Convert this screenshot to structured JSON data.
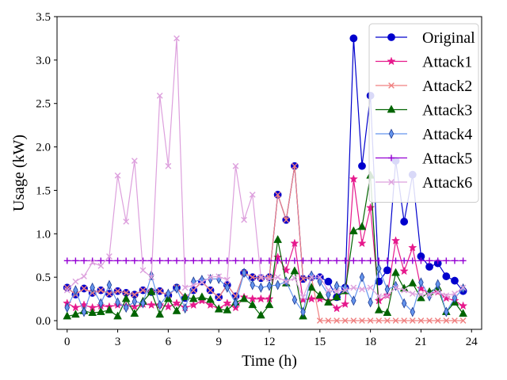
{
  "chart_data": {
    "type": "line",
    "title": "",
    "xlabel": "Time (h)",
    "ylabel": "Usage (kW)",
    "xlim": [
      -0.6,
      24.6
    ],
    "ylim": [
      -0.1,
      3.5
    ],
    "xticks": [
      0,
      3,
      6,
      9,
      12,
      15,
      18,
      21,
      24
    ],
    "xtick_labels": [
      "0",
      "3",
      "6",
      "9",
      "12",
      "15",
      "18",
      "21",
      "24"
    ],
    "yticks": [
      0.0,
      0.5,
      1.0,
      1.5,
      2.0,
      2.5,
      3.0,
      3.5
    ],
    "ytick_labels": [
      "0.0",
      "0.5",
      "1.0",
      "1.5",
      "2.0",
      "2.5",
      "3.0",
      "3.5"
    ],
    "grid": false,
    "legend_position": "top-right",
    "x": [
      0,
      0.5,
      1,
      1.5,
      2,
      2.5,
      3,
      3.5,
      4,
      4.5,
      5,
      5.5,
      6,
      6.5,
      7,
      7.5,
      8,
      8.5,
      9,
      9.5,
      10,
      10.5,
      11,
      11.5,
      12,
      12.5,
      13,
      13.5,
      14,
      14.5,
      15,
      15.5,
      16,
      16.5,
      17,
      17.5,
      18,
      18.5,
      19,
      19.5,
      20,
      20.5,
      21,
      21.5,
      22,
      22.5,
      23,
      23.5
    ],
    "series": [
      {
        "name": "Original",
        "color": "#0000cd",
        "marker": "circle",
        "values": [
          0.38,
          0.3,
          0.37,
          0.32,
          0.35,
          0.31,
          0.34,
          0.32,
          0.3,
          0.35,
          0.33,
          0.34,
          0.29,
          0.38,
          0.26,
          0.35,
          0.45,
          0.35,
          0.27,
          0.41,
          0.28,
          0.55,
          0.5,
          0.49,
          0.5,
          1.45,
          1.16,
          1.78,
          0.48,
          0.5,
          0.5,
          0.45,
          0.27,
          0.38,
          3.25,
          1.78,
          2.59,
          0.45,
          0.58,
          1.84,
          1.14,
          1.68,
          0.74,
          0.62,
          0.66,
          0.51,
          0.46,
          0.34
        ]
      },
      {
        "name": "Attack1",
        "color": "#e6198c",
        "marker": "star",
        "values": [
          0.2,
          0.15,
          0.18,
          0.15,
          0.17,
          0.16,
          0.18,
          0.17,
          0.16,
          0.19,
          0.18,
          0.18,
          0.16,
          0.2,
          0.15,
          0.18,
          0.23,
          0.18,
          0.14,
          0.2,
          0.15,
          0.27,
          0.25,
          0.25,
          0.25,
          0.73,
          0.58,
          0.89,
          0.24,
          0.25,
          0.25,
          0.23,
          0.14,
          0.19,
          1.63,
          0.89,
          1.3,
          0.23,
          0.29,
          0.92,
          0.57,
          0.84,
          0.37,
          0.31,
          0.33,
          0.26,
          0.23,
          0.17
        ]
      },
      {
        "name": "Attack2",
        "color": "#f08080",
        "marker": "x",
        "values": [
          0.38,
          0.3,
          0.37,
          0.32,
          0.35,
          0.31,
          0.34,
          0.32,
          0.3,
          0.35,
          0.33,
          0.34,
          0.29,
          0.38,
          0.26,
          0.35,
          0.45,
          0.35,
          0.27,
          0.41,
          0.28,
          0.55,
          0.5,
          0.49,
          0.5,
          1.45,
          1.16,
          1.78,
          0.48,
          0.5,
          0.0,
          0.0,
          0.0,
          0.0,
          0.0,
          0.0,
          0.0,
          0.0,
          0.0,
          0.0,
          0.0,
          0.0,
          0.0,
          0.0,
          0.0,
          0.0,
          0.0,
          0.0
        ]
      },
      {
        "name": "Attack3",
        "color": "#006400",
        "marker": "triangle",
        "values": [
          0.05,
          0.07,
          0.11,
          0.09,
          0.1,
          0.12,
          0.05,
          0.25,
          0.08,
          0.22,
          0.33,
          0.07,
          0.25,
          0.11,
          0.27,
          0.25,
          0.27,
          0.24,
          0.13,
          0.12,
          0.21,
          0.25,
          0.18,
          0.06,
          0.18,
          0.93,
          0.43,
          0.57,
          0.05,
          0.38,
          0.29,
          0.21,
          0.27,
          0.34,
          1.03,
          1.08,
          1.67,
          0.12,
          0.09,
          0.55,
          0.37,
          0.43,
          0.26,
          0.33,
          0.38,
          0.1,
          0.21,
          0.08
        ]
      },
      {
        "name": "Attack4",
        "color": "#6495ed",
        "marker": "thin-diamond",
        "values": [
          0.15,
          0.35,
          0.1,
          0.38,
          0.2,
          0.41,
          0.21,
          0.15,
          0.22,
          0.2,
          0.52,
          0.18,
          0.31,
          0.37,
          0.14,
          0.45,
          0.47,
          0.48,
          0.48,
          0.38,
          0.2,
          0.55,
          0.41,
          0.38,
          0.4,
          0.41,
          0.45,
          0.24,
          0.1,
          0.52,
          0.45,
          0.3,
          0.4,
          0.38,
          0.23,
          0.5,
          0.21,
          0.6,
          0.36,
          0.4,
          0.2,
          0.1,
          0.44,
          0.28,
          0.42,
          0.1,
          0.26,
          0.37
        ]
      },
      {
        "name": "Attack5",
        "color": "#9400d3",
        "marker": "plus",
        "values": [
          0.69,
          0.69,
          0.69,
          0.69,
          0.69,
          0.69,
          0.69,
          0.69,
          0.69,
          0.69,
          0.69,
          0.69,
          0.69,
          0.69,
          0.69,
          0.69,
          0.69,
          0.69,
          0.69,
          0.69,
          0.69,
          0.69,
          0.69,
          0.69,
          0.69,
          0.69,
          0.69,
          0.69,
          0.69,
          0.69,
          0.69,
          0.69,
          0.69,
          0.69,
          0.69,
          0.69,
          0.69,
          0.69,
          0.69,
          0.69,
          0.69,
          0.69,
          0.69,
          0.69,
          0.69,
          0.69,
          0.69,
          0.69
        ]
      },
      {
        "name": "Attack6",
        "color": "#dda0dd",
        "marker": "x",
        "values": [
          0.35,
          0.45,
          0.51,
          0.67,
          0.63,
          0.74,
          1.67,
          1.14,
          1.84,
          0.58,
          0.5,
          2.59,
          1.78,
          3.25,
          0.38,
          0.41,
          0.44,
          0.5,
          0.51,
          0.47,
          1.78,
          1.16,
          1.45,
          0.5,
          0.48,
          0.5,
          0.45,
          0.49,
          0.27,
          0.5,
          0.5,
          0.35,
          0.34,
          0.35,
          0.38,
          0.36,
          0.38,
          0.28,
          0.29,
          0.38,
          0.35,
          0.31,
          0.3,
          0.3,
          0.33,
          0.29,
          0.31,
          0.38
        ]
      }
    ]
  }
}
